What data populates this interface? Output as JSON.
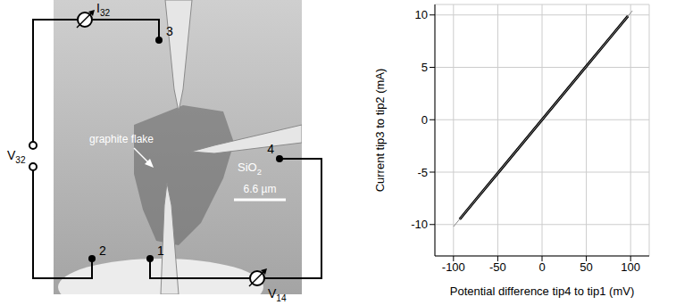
{
  "diagram": {
    "terminals": [
      "1",
      "2",
      "3",
      "4"
    ],
    "current_meter": {
      "symbol": "I",
      "sub": "32"
    },
    "voltage_source": {
      "symbol": "V",
      "sub": "32"
    },
    "voltage_meter": {
      "symbol": "V",
      "sub": "14"
    },
    "flake_label": "graphite flake",
    "substrate": {
      "symbol": "SiO",
      "sub": "2"
    },
    "scale_bar": "6.6 µm"
  },
  "chart_data": {
    "type": "line",
    "x_label": "Potential difference tip4 to tip1 (mV)",
    "y_label": "Current tip3 to tip2 (mA)",
    "xlim": [
      -121,
      121
    ],
    "xticks": [
      -100,
      -50,
      0,
      50,
      100
    ],
    "ylim": [
      -13,
      11
    ],
    "yticks": [
      -10,
      -5,
      0,
      5,
      10
    ],
    "grid": true,
    "series": [
      {
        "color": "#000000",
        "x": [
          -93,
          -75,
          -50,
          -25,
          0,
          25,
          50,
          75,
          97
        ],
        "values": [
          -9.5,
          -7.65,
          -5.1,
          -2.55,
          0,
          2.55,
          5.1,
          7.65,
          9.9
        ]
      },
      {
        "color": "#888888",
        "x": [
          -100,
          102
        ],
        "values": [
          -10.2,
          10.4
        ]
      }
    ]
  }
}
